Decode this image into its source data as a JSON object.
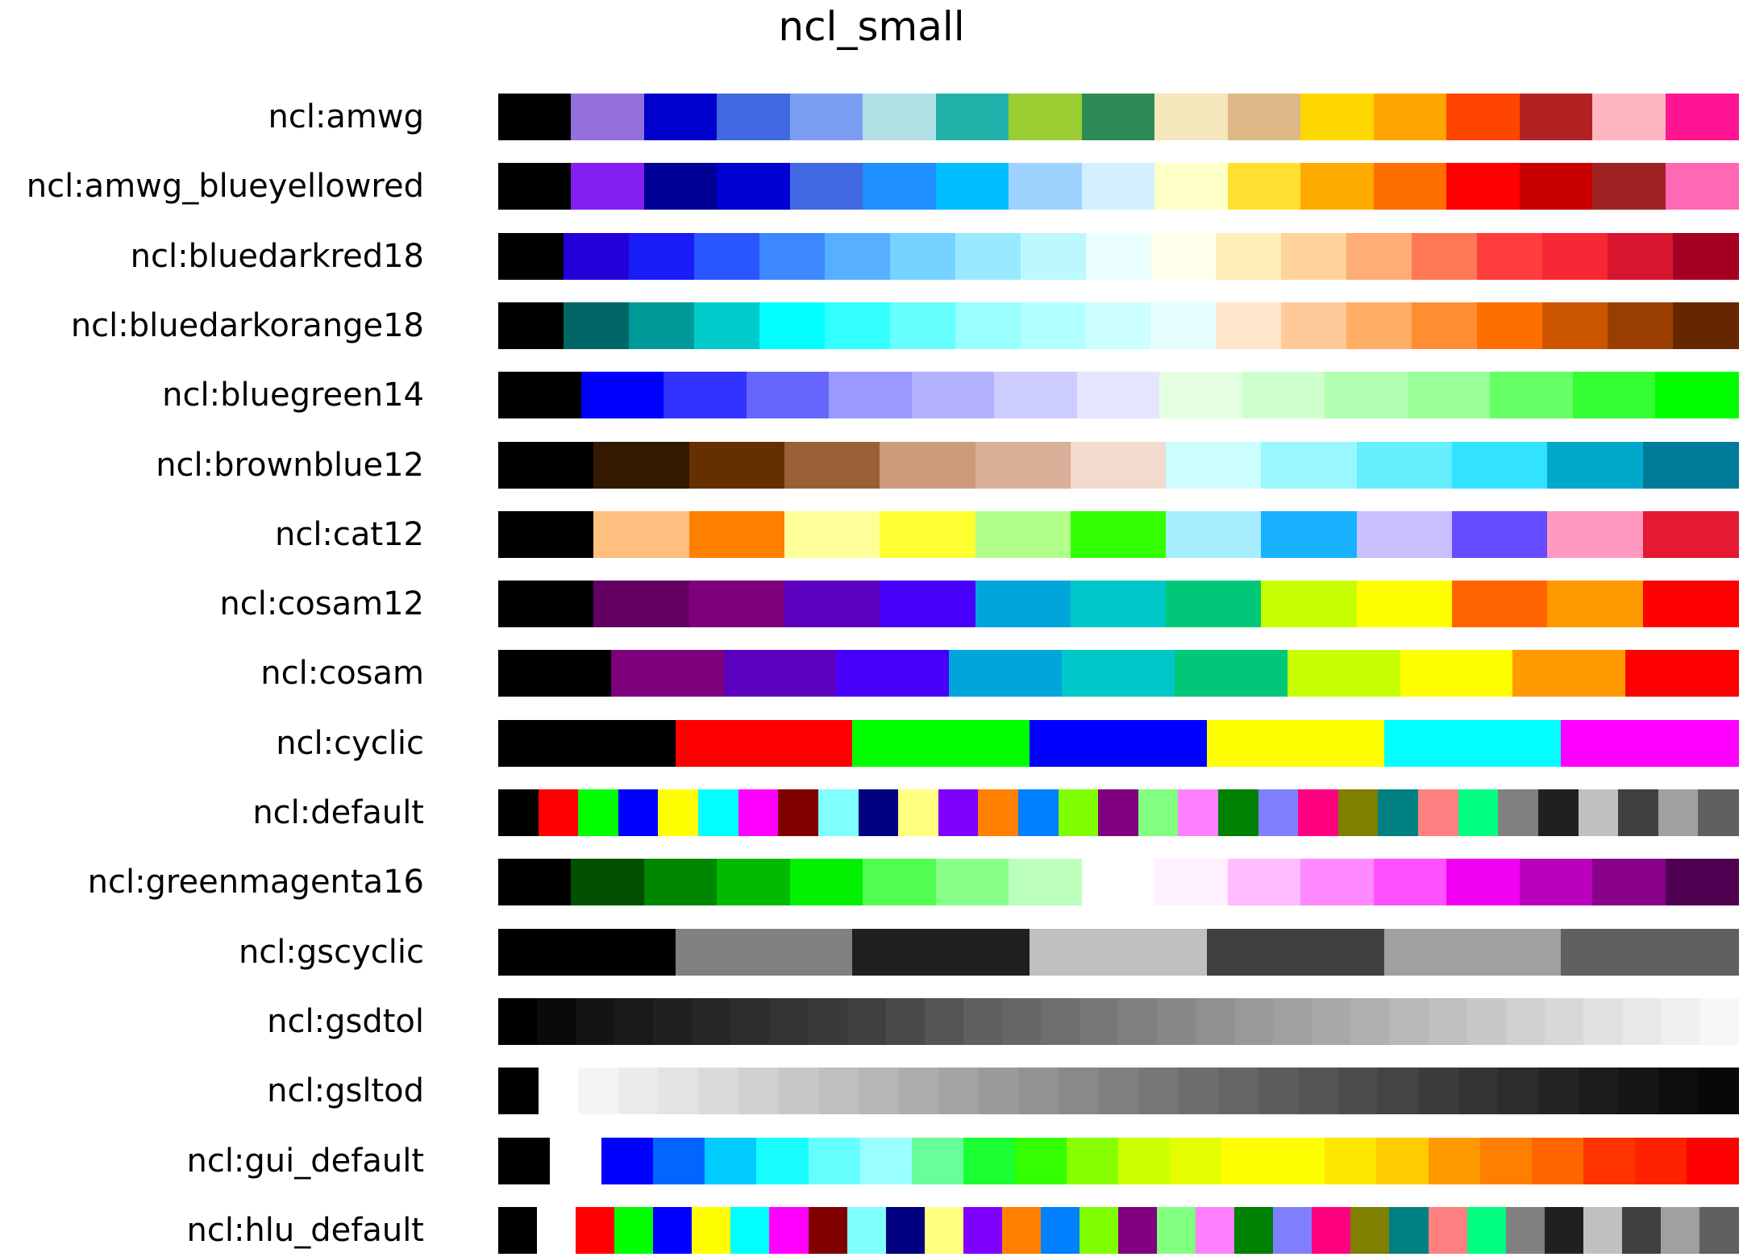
{
  "chart_data": {
    "type": "table",
    "title": "ncl_small",
    "colormaps": [
      {
        "name": "ncl:amwg",
        "colors": [
          "#000000",
          "#9370db",
          "#0000cd",
          "#4169e1",
          "#7b9ef3",
          "#b0e0e6",
          "#20b2aa",
          "#9acd32",
          "#2e8b57",
          "#f5e6bc",
          "#deb887",
          "#ffd700",
          "#ffa500",
          "#ff4500",
          "#b22222",
          "#ffb6c1",
          "#ff1493"
        ]
      },
      {
        "name": "ncl:amwg_blueyellowred",
        "colors": [
          "#000000",
          "#8320f0",
          "#000096",
          "#0000d2",
          "#4169e1",
          "#1e90ff",
          "#00bfff",
          "#a0d2ff",
          "#d2f0ff",
          "#ffffc8",
          "#ffe132",
          "#ffaa00",
          "#ff6e00",
          "#ff0000",
          "#c80000",
          "#a02323",
          "#ff69b4"
        ]
      },
      {
        "name": "ncl:bluedarkred18",
        "colors": [
          "#000000",
          "#2400d8",
          "#181cf7",
          "#2857ff",
          "#3d87ff",
          "#56b0ff",
          "#75d3ff",
          "#99eaff",
          "#bcf9ff",
          "#eaffff",
          "#ffffea",
          "#ffeeb8",
          "#ffd399",
          "#ffac75",
          "#ff7856",
          "#ff3d3d",
          "#f72735",
          "#d8152f",
          "#a50021"
        ]
      },
      {
        "name": "ncl:bluedarkorange18",
        "colors": [
          "#000000",
          "#006666",
          "#009999",
          "#00cccc",
          "#00ffff",
          "#33ffff",
          "#66ffff",
          "#99ffff",
          "#b2ffff",
          "#ccffff",
          "#e5ffff",
          "#ffe5cc",
          "#ffca99",
          "#ffad65",
          "#ff8e33",
          "#ff6e00",
          "#cc5500",
          "#993d00",
          "#662700"
        ]
      },
      {
        "name": "ncl:bluegreen14",
        "colors": [
          "#000000",
          "#0000ff",
          "#3333ff",
          "#6666ff",
          "#9999ff",
          "#b2b2ff",
          "#ccccff",
          "#e5e5ff",
          "#e5ffe5",
          "#ccffcc",
          "#b2ffb2",
          "#99ff99",
          "#66ff66",
          "#33ff33",
          "#00ff00"
        ]
      },
      {
        "name": "ncl:brownblue12",
        "colors": [
          "#000000",
          "#331900",
          "#662f00",
          "#996035",
          "#cc9b7a",
          "#d8af97",
          "#f2dacd",
          "#ccfdff",
          "#99f8ff",
          "#65efff",
          "#32e3ff",
          "#00a9cc",
          "#007a99"
        ]
      },
      {
        "name": "ncl:cat12",
        "colors": [
          "#000000",
          "#ffbf7f",
          "#ff7f00",
          "#ffff99",
          "#ffff32",
          "#b2ff8c",
          "#32ff00",
          "#a5edff",
          "#19b2ff",
          "#ccbfff",
          "#654cff",
          "#ff99bf",
          "#e51932"
        ]
      },
      {
        "name": "ncl:cosam12",
        "colors": [
          "#000000",
          "#640064",
          "#7d007d",
          "#5a00be",
          "#4600fa",
          "#00a5dc",
          "#00c8c8",
          "#00c878",
          "#c8ff00",
          "#ffff00",
          "#ff6400",
          "#ff9b00",
          "#ff0000"
        ]
      },
      {
        "name": "ncl:cosam",
        "colors": [
          "#000000",
          "#7d007d",
          "#5a00be",
          "#4600fa",
          "#00a5dc",
          "#00c8c8",
          "#00c878",
          "#c8ff00",
          "#ffff00",
          "#ff9b00",
          "#ff0000"
        ]
      },
      {
        "name": "ncl:cyclic",
        "colors": [
          "#000000",
          "#ff0000",
          "#00ff00",
          "#0000ff",
          "#ffff00",
          "#00ffff",
          "#ff00ff"
        ]
      },
      {
        "name": "ncl:default",
        "colors": [
          "#000000",
          "#ff0000",
          "#00ff00",
          "#0000ff",
          "#ffff00",
          "#00ffff",
          "#ff00ff",
          "#800000",
          "#80ffff",
          "#000080",
          "#ffff80",
          "#8000ff",
          "#ff8000",
          "#0080ff",
          "#80ff00",
          "#800080",
          "#80ff80",
          "#ff80ff",
          "#008000",
          "#8080ff",
          "#ff0080",
          "#808000",
          "#008080",
          "#ff8080",
          "#00ff80",
          "#808080",
          "#202020",
          "#c0c0c0",
          "#404040",
          "#a0a0a0",
          "#606060"
        ]
      },
      {
        "name": "ncl:greenmagenta16",
        "colors": [
          "#000000",
          "#005000",
          "#008700",
          "#00bb00",
          "#00f200",
          "#50ff50",
          "#8aff8a",
          "#bcffbc",
          "#ffffff",
          "#fff0ff",
          "#ffbcff",
          "#ff8aff",
          "#ff50ff",
          "#f200f2",
          "#bb00bb",
          "#870087",
          "#500050"
        ]
      },
      {
        "name": "ncl:gscyclic",
        "colors": [
          "#000000",
          "#808080",
          "#202020",
          "#c0c0c0",
          "#404040",
          "#a0a0a0",
          "#606060"
        ]
      },
      {
        "name": "ncl:gsdtol",
        "colors": [
          "#000000",
          "#0a0a0a",
          "#141414",
          "#1a1a1a",
          "#202020",
          "#272727",
          "#2d2d2d",
          "#333333",
          "#3a3a3a",
          "#404040",
          "#4a4a4a",
          "#555555",
          "#5f5f5f",
          "#666666",
          "#6f6f6f",
          "#777777",
          "#808080",
          "#888888",
          "#909090",
          "#999999",
          "#a0a0a0",
          "#a8a8a8",
          "#b0b0b0",
          "#b8b8b8",
          "#c0c0c0",
          "#c8c8c8",
          "#d0d0d0",
          "#d8d8d8",
          "#e0e0e0",
          "#e8e8e8",
          "#f0f0f0",
          "#f7f7f7"
        ]
      },
      {
        "name": "ncl:gsltod",
        "colors": [
          "#000000",
          "#ffffff",
          "#f5f5f5",
          "#ebebeb",
          "#e3e3e3",
          "#dbdbdb",
          "#d1d1d1",
          "#c8c8c8",
          "#bfbfbf",
          "#b6b6b6",
          "#adadad",
          "#a4a4a4",
          "#9b9b9b",
          "#929292",
          "#898989",
          "#808080",
          "#777777",
          "#6e6e6e",
          "#666666",
          "#5d5d5d",
          "#555555",
          "#4c4c4c",
          "#444444",
          "#3c3c3c",
          "#343434",
          "#2c2c2c",
          "#242424",
          "#1c1c1c",
          "#151515",
          "#0e0e0e",
          "#070707"
        ]
      },
      {
        "name": "ncl:gui_default",
        "colors": [
          "#000000",
          "#ffffff",
          "#0000ff",
          "#0066ff",
          "#00ccff",
          "#19ffff",
          "#66ffff",
          "#99ffff",
          "#66ff99",
          "#19ff32",
          "#33ff00",
          "#88ff00",
          "#ccff00",
          "#e5ff00",
          "#ffff00",
          "#ffff00",
          "#ffe600",
          "#ffcc00",
          "#ff9900",
          "#ff8000",
          "#ff6600",
          "#ff3300",
          "#ff2200",
          "#ff0000"
        ]
      },
      {
        "name": "ncl:hlu_default",
        "colors": [
          "#000000",
          "#ffffff",
          "#ff0000",
          "#00ff00",
          "#0000ff",
          "#ffff00",
          "#00ffff",
          "#ff00ff",
          "#800000",
          "#80ffff",
          "#000080",
          "#ffff80",
          "#8000ff",
          "#ff8000",
          "#0080ff",
          "#80ff00",
          "#800080",
          "#80ff80",
          "#ff80ff",
          "#008000",
          "#8080ff",
          "#ff0080",
          "#808000",
          "#008080",
          "#ff8080",
          "#00ff80",
          "#808080",
          "#202020",
          "#c0c0c0",
          "#404040",
          "#a0a0a0",
          "#606060"
        ]
      }
    ]
  }
}
